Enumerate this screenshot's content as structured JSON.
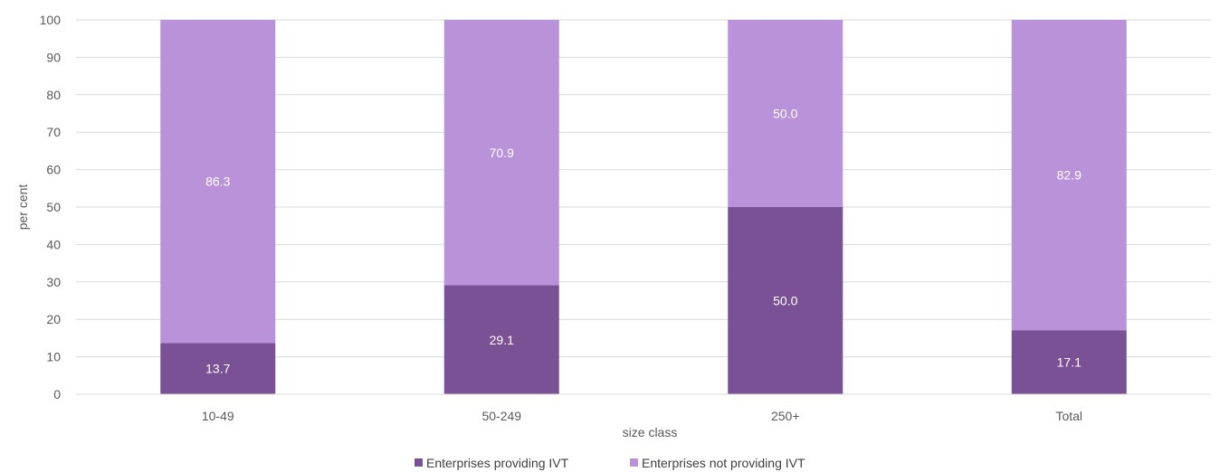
{
  "chart_data": {
    "type": "bar",
    "stacked": true,
    "categories": [
      "10-49",
      "50-249",
      "250+",
      "Total"
    ],
    "series": [
      {
        "name": "Enterprises providing IVT",
        "values": [
          13.7,
          29.1,
          50.0,
          17.1
        ],
        "color": "#7B5195"
      },
      {
        "name": "Enterprises not providing IVT",
        "values": [
          86.3,
          70.9,
          50.0,
          82.9
        ],
        "color": "#BA92DA"
      }
    ],
    "data_labels": [
      [
        "13.7",
        "29.1",
        "50.0",
        "17.1"
      ],
      [
        "86.3",
        "70.9",
        "50.0",
        "82.9"
      ]
    ],
    "xlabel": "size class",
    "ylabel": "per cent",
    "ylim": [
      0,
      100
    ],
    "yticks": [
      "0",
      "10",
      "20",
      "30",
      "40",
      "50",
      "60",
      "70",
      "80",
      "90",
      "100"
    ],
    "grid": true,
    "legend_position": "bottom"
  }
}
